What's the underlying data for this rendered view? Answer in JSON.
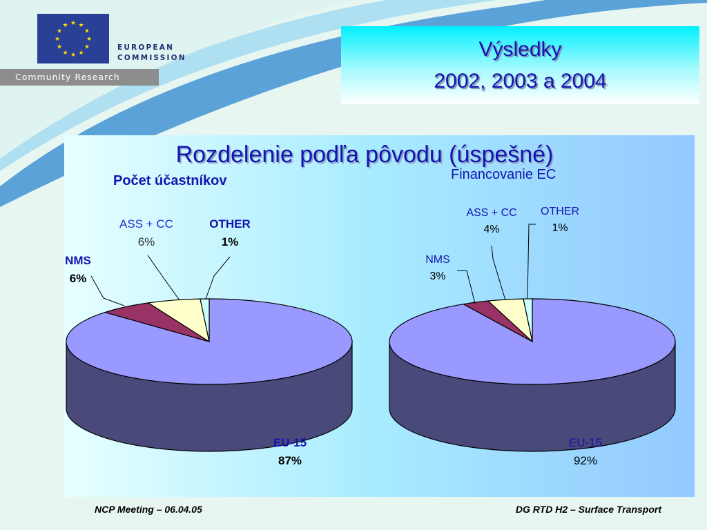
{
  "header": {
    "commission_line1": "EUROPEAN",
    "commission_line2": "COMMISSION",
    "community_research": "Community Research"
  },
  "slide_title": {
    "line1": "Výsledky",
    "line2": "2002, 2003 a 2004"
  },
  "chart_heading": "Rozdelenie podľa pôvodu (úspešné)",
  "chart_data": [
    {
      "type": "pie",
      "title": "Počet účastníkov",
      "slices": [
        {
          "label": "EU-15",
          "value": 87,
          "display": "87%",
          "color": "#9999ff"
        },
        {
          "label": "NMS",
          "value": 6,
          "display": "6%",
          "color": "#993366"
        },
        {
          "label": "ASS + CC",
          "value": 6,
          "display": "6%",
          "color": "#ffffcc"
        },
        {
          "label": "OTHER",
          "value": 1,
          "display": "1%",
          "color": "#ccffff"
        }
      ]
    },
    {
      "type": "pie",
      "title": "Financovanie EC",
      "slices": [
        {
          "label": "EU-15",
          "value": 92,
          "display": "92%",
          "color": "#9999ff"
        },
        {
          "label": "NMS",
          "value": 3,
          "display": "3%",
          "color": "#993366"
        },
        {
          "label": "ASS + CC",
          "value": 4,
          "display": "4%",
          "color": "#ffffcc"
        },
        {
          "label": "OTHER",
          "value": 1,
          "display": "1%",
          "color": "#ccffff"
        }
      ]
    }
  ],
  "footer": {
    "left": "NCP Meeting – 06.04.05",
    "right": "DG RTD H2 – Surface Transport"
  }
}
